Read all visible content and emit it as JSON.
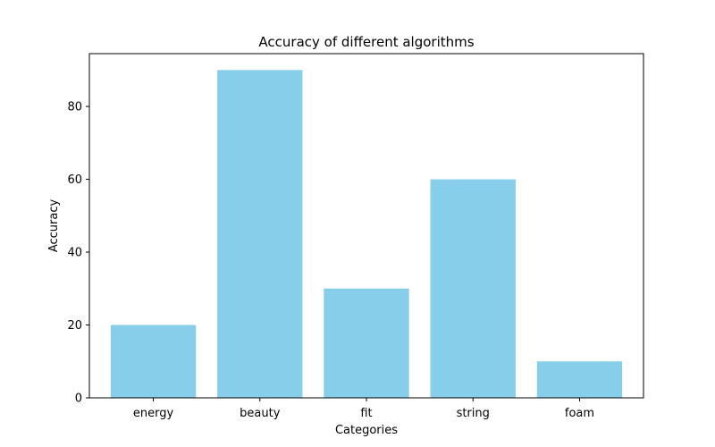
{
  "chart_data": {
    "type": "bar",
    "title": "Accuracy of different algorithms",
    "xlabel": "Categories",
    "ylabel": "Accuracy",
    "categories": [
      "energy",
      "beauty",
      "fit",
      "string",
      "foam"
    ],
    "values": [
      20,
      90,
      30,
      60,
      10
    ],
    "ylim": [
      0,
      94.5
    ],
    "yticks": [
      0,
      20,
      40,
      60,
      80
    ],
    "grid": false,
    "legend": "none",
    "bar_color": "#87ceeb"
  }
}
